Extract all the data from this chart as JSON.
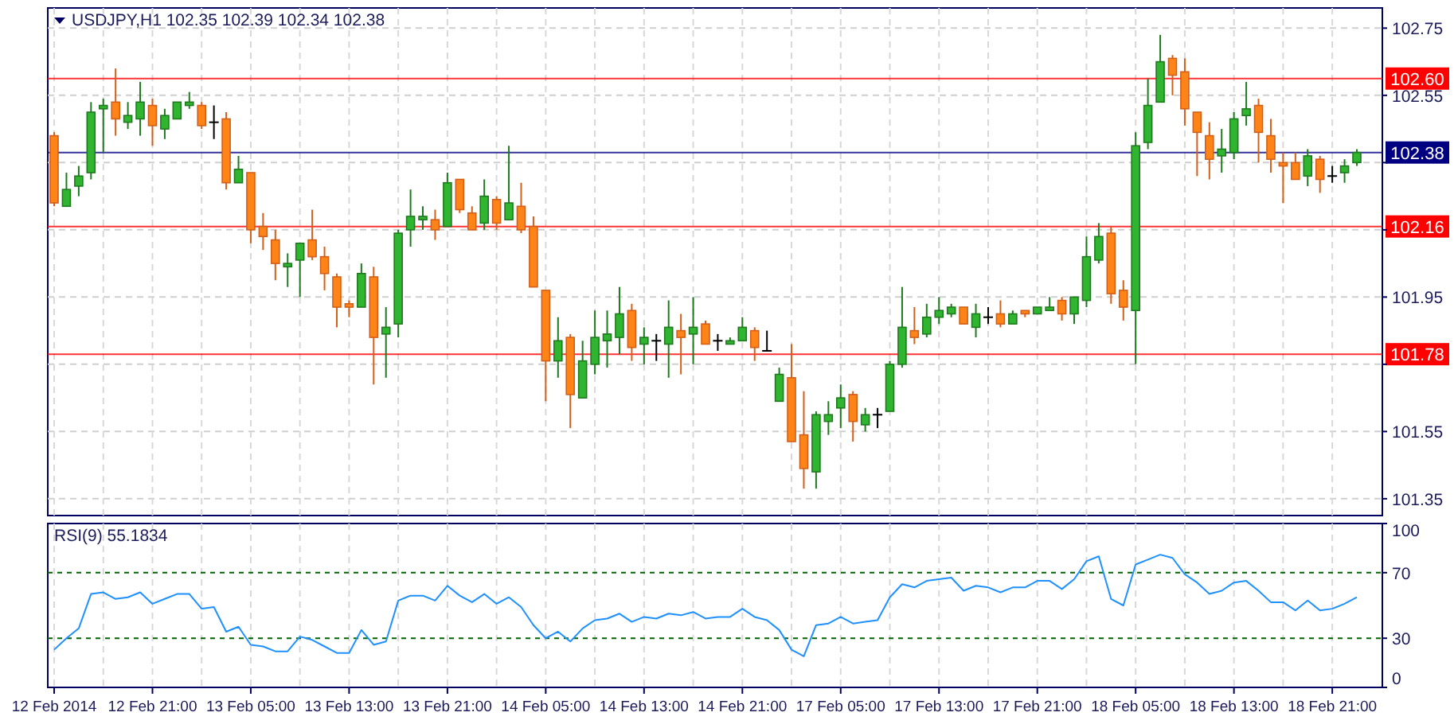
{
  "chart_data": [
    {
      "type": "candlestick",
      "title": "USDJPY,H1 102.35 102.39 102.34 102.38",
      "categories": [
        null,
        null,
        null,
        null,
        null,
        null,
        null,
        null,
        null,
        null,
        null,
        null,
        null,
        null,
        null,
        null,
        null,
        null,
        null,
        null,
        null,
        null,
        null,
        null,
        null,
        null,
        null,
        null,
        null,
        null,
        null,
        null,
        null,
        null,
        null,
        null,
        null,
        null,
        null,
        null,
        null,
        null,
        null,
        null,
        null,
        null,
        null,
        null,
        null,
        null,
        null,
        null,
        null,
        null,
        null,
        null,
        null,
        null,
        null,
        null,
        null,
        null,
        null,
        null,
        null,
        null,
        null,
        null,
        null,
        null,
        null,
        null,
        null,
        null,
        null,
        null,
        null,
        null,
        null,
        null,
        null,
        null,
        null,
        null,
        null,
        null,
        null,
        null,
        null,
        null,
        null,
        null,
        null,
        null,
        null,
        null,
        null,
        null,
        null,
        null,
        null,
        null,
        null,
        null,
        null,
        null,
        null
      ],
      "ohlc": [
        [
          102.43,
          102.44,
          102.22,
          102.23
        ],
        [
          102.22,
          102.32,
          102.22,
          102.27
        ],
        [
          102.28,
          102.34,
          102.25,
          102.31
        ],
        [
          102.32,
          102.53,
          102.3,
          102.5
        ],
        [
          102.51,
          102.54,
          102.38,
          102.52
        ],
        [
          102.53,
          102.63,
          102.43,
          102.48
        ],
        [
          102.47,
          102.53,
          102.45,
          102.49
        ],
        [
          102.48,
          102.59,
          102.43,
          102.53
        ],
        [
          102.52,
          102.54,
          102.4,
          102.46
        ],
        [
          102.45,
          102.51,
          102.42,
          102.49
        ],
        [
          102.48,
          102.53,
          102.48,
          102.53
        ],
        [
          102.52,
          102.56,
          102.51,
          102.53
        ],
        [
          102.52,
          102.53,
          102.45,
          102.46
        ],
        [
          102.47,
          102.52,
          102.42,
          102.47
        ],
        [
          102.48,
          102.5,
          102.27,
          102.29
        ],
        [
          102.29,
          102.37,
          102.29,
          102.33
        ],
        [
          102.32,
          102.32,
          102.11,
          102.15
        ],
        [
          102.16,
          102.2,
          102.09,
          102.13
        ],
        [
          102.12,
          102.15,
          102.0,
          102.05
        ],
        [
          102.04,
          102.08,
          101.98,
          102.05
        ],
        [
          102.06,
          102.11,
          101.95,
          102.11
        ],
        [
          102.12,
          102.21,
          102.06,
          102.07
        ],
        [
          102.07,
          102.1,
          101.97,
          102.02
        ],
        [
          102.01,
          102.02,
          101.86,
          101.92
        ],
        [
          101.93,
          101.94,
          101.89,
          101.92
        ],
        [
          101.92,
          102.05,
          101.92,
          102.02
        ],
        [
          102.01,
          102.04,
          101.69,
          101.83
        ],
        [
          101.84,
          101.92,
          101.71,
          101.86
        ],
        [
          101.87,
          102.15,
          101.83,
          102.14
        ],
        [
          102.15,
          102.27,
          102.1,
          102.19
        ],
        [
          102.18,
          102.22,
          102.15,
          102.19
        ],
        [
          102.18,
          102.21,
          102.12,
          102.15
        ],
        [
          102.16,
          102.32,
          102.16,
          102.29
        ],
        [
          102.3,
          102.3,
          102.2,
          102.21
        ],
        [
          102.2,
          102.22,
          102.15,
          102.15
        ],
        [
          102.17,
          102.3,
          102.15,
          102.25
        ],
        [
          102.24,
          102.25,
          102.15,
          102.17
        ],
        [
          102.18,
          102.4,
          102.18,
          102.23
        ],
        [
          102.22,
          102.29,
          102.14,
          102.15
        ],
        [
          102.16,
          102.19,
          101.98,
          101.98
        ],
        [
          101.97,
          101.97,
          101.64,
          101.76
        ],
        [
          101.76,
          101.89,
          101.71,
          101.82
        ],
        [
          101.83,
          101.84,
          101.56,
          101.66
        ],
        [
          101.65,
          101.82,
          101.65,
          101.76
        ],
        [
          101.75,
          101.91,
          101.72,
          101.83
        ],
        [
          101.82,
          101.91,
          101.74,
          101.84
        ],
        [
          101.83,
          101.98,
          101.78,
          101.9
        ],
        [
          101.91,
          101.93,
          101.76,
          101.8
        ],
        [
          101.81,
          101.86,
          101.75,
          101.83
        ],
        [
          101.82,
          101.84,
          101.76,
          101.82
        ],
        [
          101.81,
          101.94,
          101.71,
          101.86
        ],
        [
          101.85,
          101.9,
          101.72,
          101.83
        ],
        [
          101.84,
          101.95,
          101.75,
          101.86
        ],
        [
          101.87,
          101.88,
          101.81,
          101.81
        ],
        [
          101.82,
          101.84,
          101.79,
          101.82
        ],
        [
          101.81,
          101.83,
          101.81,
          101.82
        ],
        [
          101.82,
          101.89,
          101.82,
          101.86
        ],
        [
          101.85,
          101.86,
          101.76,
          101.8
        ],
        [
          101.79,
          101.85,
          101.79,
          101.79
        ],
        [
          101.64,
          101.74,
          101.64,
          101.72
        ],
        [
          101.71,
          101.81,
          101.52,
          101.52
        ],
        [
          101.54,
          101.67,
          101.38,
          101.44
        ],
        [
          101.43,
          101.61,
          101.38,
          101.6
        ],
        [
          101.58,
          101.64,
          101.54,
          101.6
        ],
        [
          101.62,
          101.69,
          101.56,
          101.65
        ],
        [
          101.66,
          101.67,
          101.52,
          101.58
        ],
        [
          101.57,
          101.62,
          101.55,
          101.6
        ],
        [
          101.6,
          101.62,
          101.56,
          101.6
        ],
        [
          101.61,
          101.76,
          101.61,
          101.75
        ],
        [
          101.75,
          101.98,
          101.74,
          101.86
        ],
        [
          101.85,
          101.92,
          101.81,
          101.83
        ],
        [
          101.84,
          101.93,
          101.83,
          101.89
        ],
        [
          101.89,
          101.95,
          101.87,
          101.91
        ],
        [
          101.9,
          101.93,
          101.89,
          101.92
        ],
        [
          101.92,
          101.92,
          101.87,
          101.87
        ],
        [
          101.86,
          101.93,
          101.83,
          101.9
        ],
        [
          101.89,
          101.92,
          101.87,
          101.89
        ],
        [
          101.9,
          101.94,
          101.86,
          101.87
        ],
        [
          101.87,
          101.91,
          101.87,
          101.9
        ],
        [
          101.91,
          101.91,
          101.89,
          101.9
        ],
        [
          101.9,
          101.92,
          101.9,
          101.92
        ],
        [
          101.91,
          101.95,
          101.91,
          101.92
        ],
        [
          101.94,
          101.95,
          101.88,
          101.9
        ],
        [
          101.9,
          101.95,
          101.87,
          101.95
        ],
        [
          101.94,
          102.13,
          101.92,
          102.07
        ],
        [
          102.06,
          102.17,
          102.05,
          102.13
        ],
        [
          102.14,
          102.16,
          101.93,
          101.96
        ],
        [
          101.97,
          102.0,
          101.88,
          101.92
        ],
        [
          101.91,
          102.44,
          101.75,
          102.4
        ],
        [
          102.41,
          102.6,
          102.39,
          102.52
        ],
        [
          102.53,
          102.73,
          102.53,
          102.65
        ],
        [
          102.66,
          102.67,
          102.55,
          102.61
        ],
        [
          102.62,
          102.66,
          102.46,
          102.51
        ],
        [
          102.5,
          102.5,
          102.31,
          102.44
        ],
        [
          102.43,
          102.47,
          102.3,
          102.36
        ],
        [
          102.37,
          102.45,
          102.32,
          102.39
        ],
        [
          102.38,
          102.5,
          102.36,
          102.48
        ],
        [
          102.49,
          102.59,
          102.46,
          102.51
        ],
        [
          102.52,
          102.54,
          102.35,
          102.44
        ],
        [
          102.43,
          102.48,
          102.32,
          102.36
        ],
        [
          102.35,
          102.38,
          102.23,
          102.34
        ],
        [
          102.35,
          102.38,
          102.3,
          102.3
        ],
        [
          102.31,
          102.39,
          102.28,
          102.37
        ],
        [
          102.36,
          102.37,
          102.26,
          102.3
        ],
        [
          102.31,
          102.34,
          102.29,
          102.31
        ],
        [
          102.32,
          102.36,
          102.29,
          102.34
        ],
        [
          102.35,
          102.39,
          102.34,
          102.38
        ]
      ],
      "ylim": [
        101.3,
        102.81
      ],
      "yticks": [
        102.75,
        102.55,
        {
          "value": 102.35,
          "label": null
        },
        {
          "value": 102.15,
          "label": null
        },
        101.95,
        {
          "value": 101.75,
          "label": null
        },
        101.55,
        101.35
      ],
      "grid": true,
      "tick_labels": "y",
      "ref_lines": [
        {
          "axis": "y",
          "value": 102.6,
          "label": "102.60",
          "color": "#ff0000"
        },
        {
          "axis": "y",
          "value": 102.16,
          "label": "102.16",
          "color": "#ff0000"
        },
        {
          "axis": "y",
          "value": 101.78,
          "label": "101.78",
          "color": "#ff0000"
        },
        {
          "axis": "y",
          "value": 102.38,
          "label": "102.38",
          "color": "#000080"
        }
      ]
    },
    {
      "type": "line",
      "title": "RSI(9) 55.1834",
      "categories": [
        "12 Feb 2014",
        null,
        null,
        null,
        null,
        null,
        null,
        null,
        "12 Feb 21:00",
        null,
        null,
        null,
        null,
        null,
        null,
        null,
        "13 Feb 05:00",
        null,
        null,
        null,
        null,
        null,
        null,
        null,
        "13 Feb 13:00",
        null,
        null,
        null,
        null,
        null,
        null,
        null,
        "13 Feb 21:00",
        null,
        null,
        null,
        null,
        null,
        null,
        null,
        "14 Feb 05:00",
        null,
        null,
        null,
        null,
        null,
        null,
        null,
        "14 Feb 13:00",
        null,
        null,
        null,
        null,
        null,
        null,
        null,
        "14 Feb 21:00",
        null,
        null,
        null,
        null,
        null,
        null,
        null,
        "17 Feb 05:00",
        null,
        null,
        null,
        null,
        null,
        null,
        null,
        "17 Feb 13:00",
        null,
        null,
        null,
        null,
        null,
        null,
        null,
        "17 Feb 21:00",
        null,
        null,
        null,
        null,
        null,
        null,
        null,
        "18 Feb 05:00",
        null,
        null,
        null,
        null,
        null,
        null,
        null,
        "18 Feb 13:00",
        null,
        null,
        null,
        null,
        null,
        null,
        null,
        "18 Feb 21:00",
        null,
        null
      ],
      "series": [
        {
          "color": "#1e90ff",
          "values": [
            23,
            30,
            36,
            57,
            58,
            54,
            55,
            58,
            51,
            54,
            57,
            57,
            48,
            49,
            34,
            37,
            26,
            25,
            22,
            22,
            31,
            29,
            25,
            21,
            21,
            35,
            26,
            28,
            53,
            56,
            56,
            53,
            62,
            56,
            52,
            57,
            51,
            55,
            49,
            38,
            30,
            34,
            28,
            36,
            41,
            42,
            45,
            40,
            43,
            42,
            45,
            44,
            46,
            42,
            43,
            43,
            48,
            43,
            41,
            35,
            23,
            19,
            38,
            39,
            43,
            39,
            40,
            41,
            55,
            63,
            61,
            65,
            66,
            67,
            59,
            62,
            61,
            58,
            61,
            61,
            65,
            65,
            60,
            66,
            77,
            80,
            54,
            50,
            75,
            78,
            81,
            79,
            69,
            64,
            57,
            59,
            64,
            65,
            59,
            52,
            52,
            47,
            53,
            47,
            48,
            51,
            55
          ]
        }
      ],
      "ylim": [
        0,
        100
      ],
      "yticks": [
        0,
        30,
        70,
        100
      ],
      "grid": "x",
      "ref_lines": [
        {
          "axis": "y",
          "value": 30,
          "color": "#006400",
          "line_style": "dashed"
        },
        {
          "axis": "y",
          "value": 70,
          "color": "#006400",
          "line_style": "dashed"
        }
      ]
    }
  ]
}
